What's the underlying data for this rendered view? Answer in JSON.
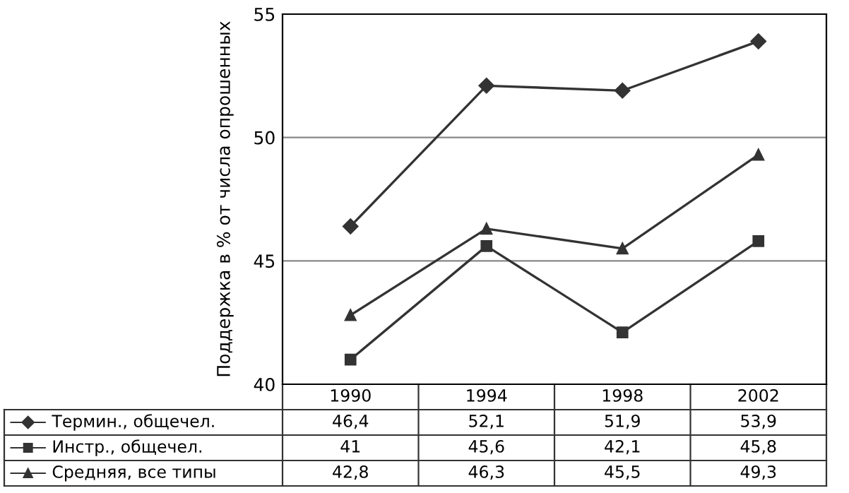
{
  "chart_data": {
    "type": "line",
    "ylabel": "Поддержка в % от числа опрошенных",
    "categories": [
      "1990",
      "1994",
      "1998",
      "2002"
    ],
    "ylim": [
      40,
      55
    ],
    "yticks": [
      40,
      45,
      50,
      55
    ],
    "grid": "y",
    "legend": "bottom",
    "line_style": "solid",
    "series": [
      {
        "name": "Термин., общечел.",
        "color": "#333333",
        "marker": "diamond",
        "values": [
          46.4,
          52.1,
          51.9,
          53.9
        ],
        "value_labels": [
          "46,4",
          "52,1",
          "51,9",
          "53,9"
        ]
      },
      {
        "name": "Инстр., общечел.",
        "color": "#333333",
        "marker": "square",
        "values": [
          41,
          45.6,
          42.1,
          45.8
        ],
        "value_labels": [
          "41",
          "45,6",
          "42,1",
          "45,8"
        ]
      },
      {
        "name": "Средняя, все типы",
        "color": "#333333",
        "marker": "triangle",
        "values": [
          42.8,
          46.3,
          45.5,
          49.3
        ],
        "value_labels": [
          "42,8",
          "46,3",
          "45,5",
          "49,3"
        ]
      }
    ]
  }
}
